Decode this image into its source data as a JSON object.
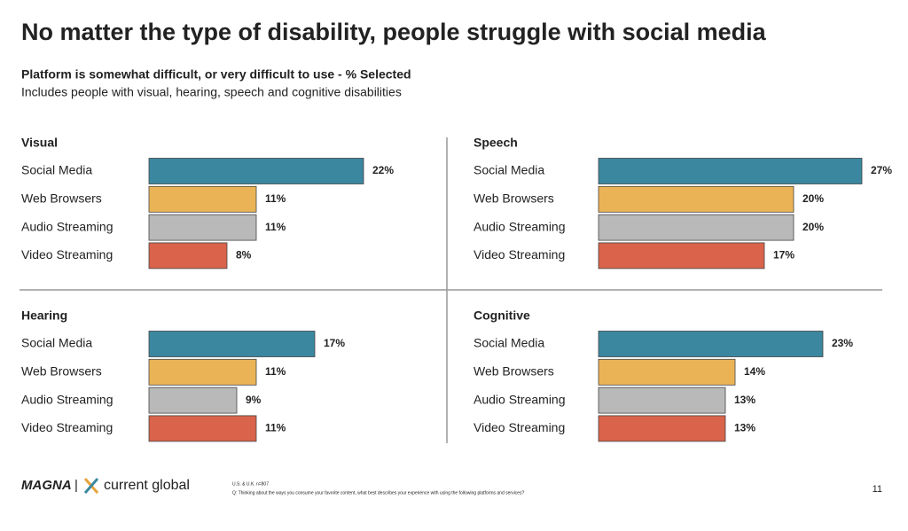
{
  "title": "No matter the type of disability, people struggle with social media",
  "subtitle": "Platform is somewhat difficult, or very difficult to use - % Selected",
  "description": "Includes people with visual, hearing, speech and cognitive disabilities",
  "footer": {
    "logos": [
      "MAGNA",
      "current global"
    ],
    "sample": "U.S. & U.K. n=807",
    "question": "Q: Thinking about the ways you consume your favorite content, what best describes your experience with using the following platforms and services?",
    "page": "11"
  },
  "chart_data": [
    {
      "type": "bar",
      "orientation": "horizontal",
      "title": "Visual",
      "categories": [
        "Social Media",
        "Web Browsers",
        "Audio Streaming",
        "Video Streaming"
      ],
      "values": [
        22,
        11,
        11,
        8
      ],
      "value_labels": [
        "22%",
        "11%",
        "11%",
        "8%"
      ],
      "colors": [
        "#3b87a0",
        "#eab456",
        "#b9b9b9",
        "#d9634b"
      ]
    },
    {
      "type": "bar",
      "orientation": "horizontal",
      "title": "Speech",
      "categories": [
        "Social Media",
        "Web Browsers",
        "Audio Streaming",
        "Video Streaming"
      ],
      "values": [
        27,
        20,
        20,
        17
      ],
      "value_labels": [
        "27%",
        "20%",
        "20%",
        "17%"
      ],
      "colors": [
        "#3b87a0",
        "#eab456",
        "#b9b9b9",
        "#d9634b"
      ]
    },
    {
      "type": "bar",
      "orientation": "horizontal",
      "title": "Hearing",
      "categories": [
        "Social Media",
        "Web Browsers",
        "Audio Streaming",
        "Video Streaming"
      ],
      "values": [
        17,
        11,
        9,
        11
      ],
      "value_labels": [
        "17%",
        "11%",
        "9%",
        "11%"
      ],
      "colors": [
        "#3b87a0",
        "#eab456",
        "#b9b9b9",
        "#d9634b"
      ]
    },
    {
      "type": "bar",
      "orientation": "horizontal",
      "title": "Cognitive",
      "categories": [
        "Social Media",
        "Web Browsers",
        "Audio Streaming",
        "Video Streaming"
      ],
      "values": [
        23,
        14,
        13,
        13
      ],
      "value_labels": [
        "23%",
        "14%",
        "13%",
        "13%"
      ],
      "colors": [
        "#3b87a0",
        "#eab456",
        "#b9b9b9",
        "#d9634b"
      ]
    }
  ]
}
